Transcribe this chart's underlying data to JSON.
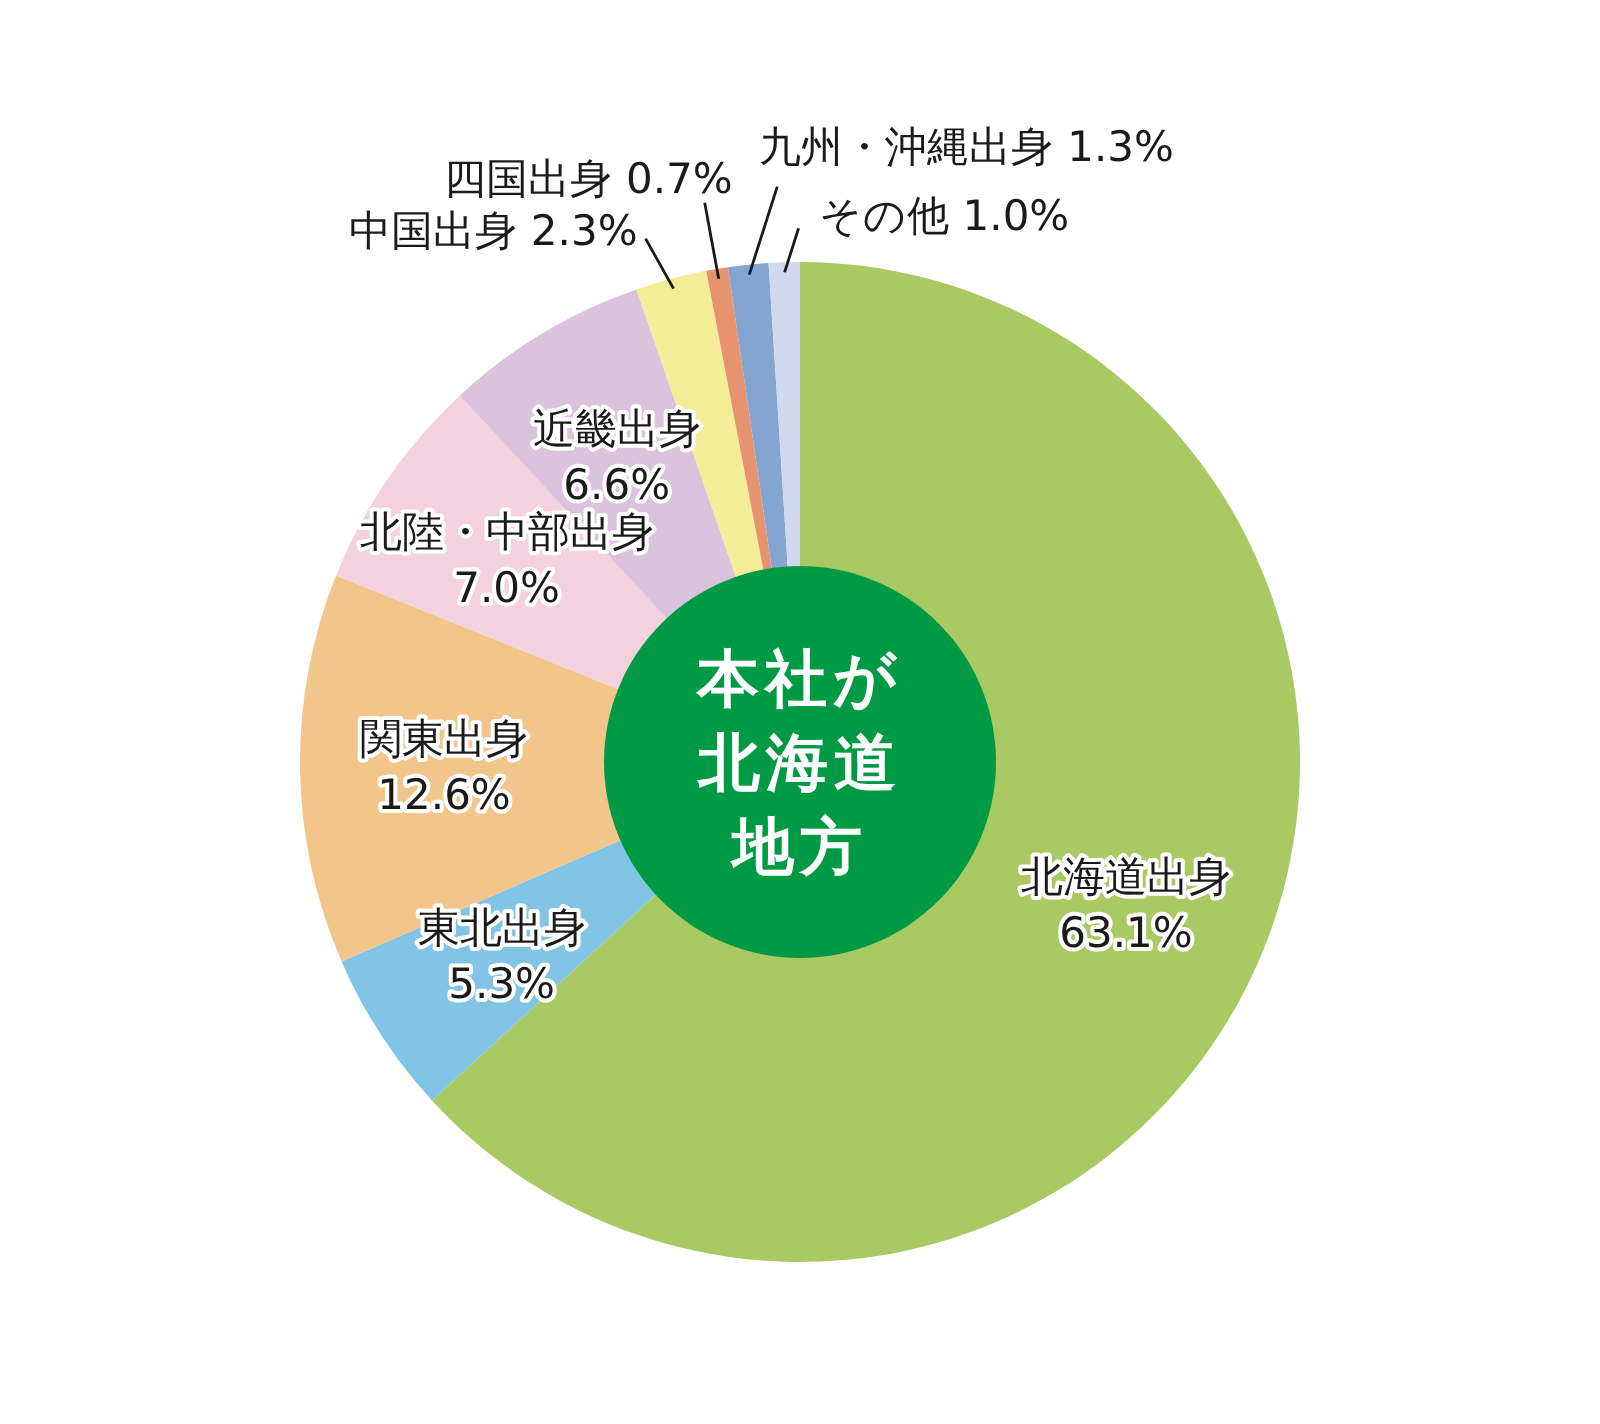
{
  "chart_data": {
    "type": "donut",
    "title": "本社が北海道地方",
    "categories": [
      "北海道出身",
      "東北出身",
      "関東出身",
      "北陸・中部出身",
      "近畿出身",
      "中国出身",
      "四国出身",
      "九州・沖縄出身",
      "その他"
    ],
    "values": [
      63.1,
      5.3,
      12.6,
      7.0,
      6.6,
      2.3,
      0.7,
      1.3,
      1.0
    ],
    "value_labels": [
      "63.1%",
      "5.3%",
      "12.6%",
      "7.0%",
      "6.6%",
      "2.3%",
      "0.7%",
      "1.3%",
      "1.0%"
    ],
    "colors": [
      "#a9c962",
      "#82c4e6",
      "#f2c68b",
      "#f4d1df",
      "#dbc2dd",
      "#f4ed98",
      "#e8936f",
      "#85a5d1",
      "#d0d9ee"
    ]
  }
}
